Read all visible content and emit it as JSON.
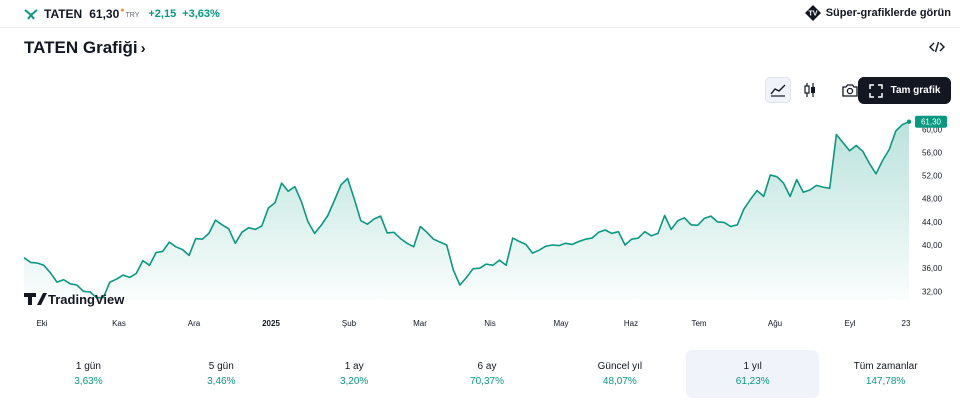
{
  "header": {
    "symbol": "TATEN",
    "price": "61,30",
    "currency": "TRY",
    "change_abs": "+2,15",
    "change_pct": "+3,63%",
    "accent_color": "#089981",
    "super_charts_label": "Süper-grafiklerde görün"
  },
  "title": {
    "text": "TATEN Grafiği",
    "chevron": "›"
  },
  "toolbar": {
    "full_chart_label": "Tam grafik",
    "icons": [
      "area-chart-icon",
      "candles-icon",
      "camera-icon",
      "fullscreen-icon",
      "embed-code-icon"
    ]
  },
  "watermark": "TradingView",
  "chart_data": {
    "type": "area",
    "title": "",
    "xlabel": "",
    "ylabel": "",
    "color": "#089981",
    "x_ticks": [
      "Eki",
      "Kas",
      "Ara",
      "2025",
      "Şub",
      "Mar",
      "Nis",
      "May",
      "Haz",
      "Tem",
      "Ağu",
      "Eyl",
      "23"
    ],
    "y_ticks": [
      "32,00",
      "36,00",
      "40,00",
      "44,00",
      "48,00",
      "52,00",
      "56,00",
      "60,00"
    ],
    "ylim": [
      30.5,
      61.6
    ],
    "last_value_label": "61,30",
    "values": [
      37.8,
      37.0,
      36.9,
      36.5,
      35.2,
      33.6,
      34.0,
      33.3,
      33.1,
      32.0,
      31.9,
      30.9,
      30.9,
      33.6,
      34.1,
      34.8,
      34.4,
      35.1,
      37.3,
      36.5,
      38.7,
      38.9,
      40.5,
      39.7,
      39.2,
      38.2,
      41.1,
      41.0,
      42.0,
      44.3,
      43.5,
      42.8,
      40.3,
      42.2,
      43.0,
      42.7,
      43.3,
      46.4,
      47.3,
      50.7,
      49.3,
      50.1,
      47.5,
      44.0,
      42.0,
      43.4,
      45.1,
      47.7,
      50.4,
      51.5,
      48.0,
      44.2,
      43.6,
      44.5,
      45.0,
      42.1,
      42.2,
      41.1,
      40.3,
      39.7,
      43.2,
      42.2,
      41.0,
      40.5,
      40.0,
      35.7,
      33.1,
      34.4,
      35.9,
      36.0,
      36.7,
      36.5,
      37.4,
      36.5,
      41.2,
      40.6,
      40.1,
      38.6,
      39.1,
      39.8,
      40.0,
      39.9,
      40.3,
      40.1,
      40.6,
      41.0,
      41.2,
      42.2,
      42.6,
      42.0,
      42.3,
      40.0,
      41.0,
      41.2,
      42.3,
      41.6,
      42.0,
      45.1,
      42.7,
      44.2,
      44.7,
      43.5,
      43.4,
      44.6,
      45.0,
      44.0,
      43.9,
      43.2,
      43.5,
      46.2,
      47.9,
      49.4,
      48.4,
      52.1,
      51.8,
      50.7,
      48.4,
      51.3,
      49.1,
      49.5,
      50.3,
      50.0,
      49.8,
      59.1,
      57.7,
      56.3,
      57.2,
      56.2,
      54.1,
      52.3,
      54.6,
      56.5,
      59.7,
      60.8,
      61.3
    ]
  },
  "periods": [
    {
      "label": "1 gün",
      "value": "3,63%"
    },
    {
      "label": "5 gün",
      "value": "3,46%"
    },
    {
      "label": "1 ay",
      "value": "3,20%"
    },
    {
      "label": "6 ay",
      "value": "70,37%"
    },
    {
      "label": "Güncel yıl",
      "value": "48,07%"
    },
    {
      "label": "1 yıl",
      "value": "61,23%"
    },
    {
      "label": "Tüm zamanlar",
      "value": "147,78%"
    }
  ]
}
